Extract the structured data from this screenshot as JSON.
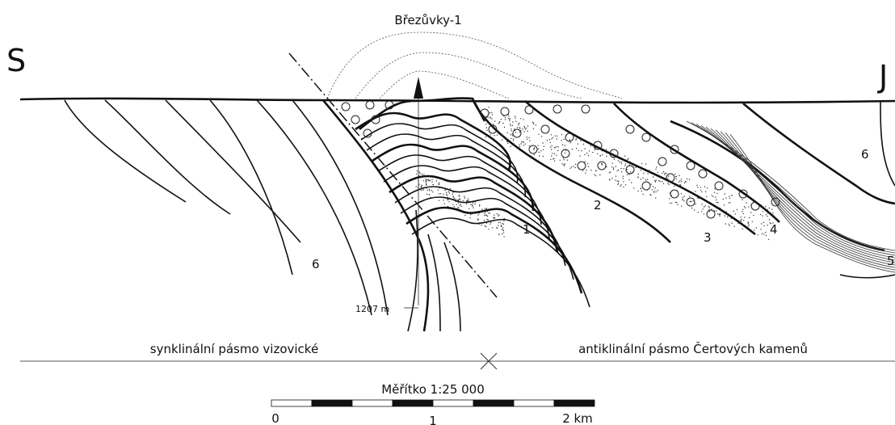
{
  "header": {
    "well": "Březůvky-1"
  },
  "directions": {
    "left": "S",
    "right": "J"
  },
  "labels": {
    "unit6_left": "6",
    "unit6_right": "6",
    "unit1": "1",
    "unit2": "2",
    "unit3": "3",
    "unit4": "4",
    "unit5": "5",
    "depth": "1207 m"
  },
  "zones": {
    "left": "synklinální pásmo vizovické",
    "right": "antiklinální pásmo Čertových kamenů"
  },
  "scale": {
    "title": "Měřítko 1:25 000",
    "ticks": [
      "0",
      "1",
      "2 km"
    ]
  }
}
